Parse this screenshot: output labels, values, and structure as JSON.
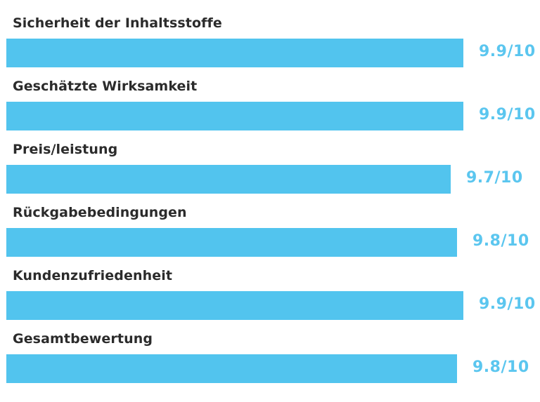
{
  "chart_data": {
    "type": "bar",
    "orientation": "horizontal",
    "title": "",
    "xlabel": "",
    "ylabel": "",
    "xlim": [
      0,
      10
    ],
    "categories": [
      "Sicherheit der Inhaltsstoffe",
      "Geschätzte Wirksamkeit",
      "Preis/leistung",
      "Rückgabebedingungen",
      "Kundenzufriedenheit",
      "Gesamtbewertung"
    ],
    "values": [
      9.9,
      9.9,
      9.7,
      9.8,
      9.9,
      9.8
    ],
    "value_labels": [
      "9.9/10",
      "9.9/10",
      "9.7/10",
      "9.8/10",
      "9.9/10",
      "9.8/10"
    ],
    "bar_color": "#52c4ee",
    "label_color": "#5bc6ef",
    "text_color": "#2b2b2b"
  }
}
